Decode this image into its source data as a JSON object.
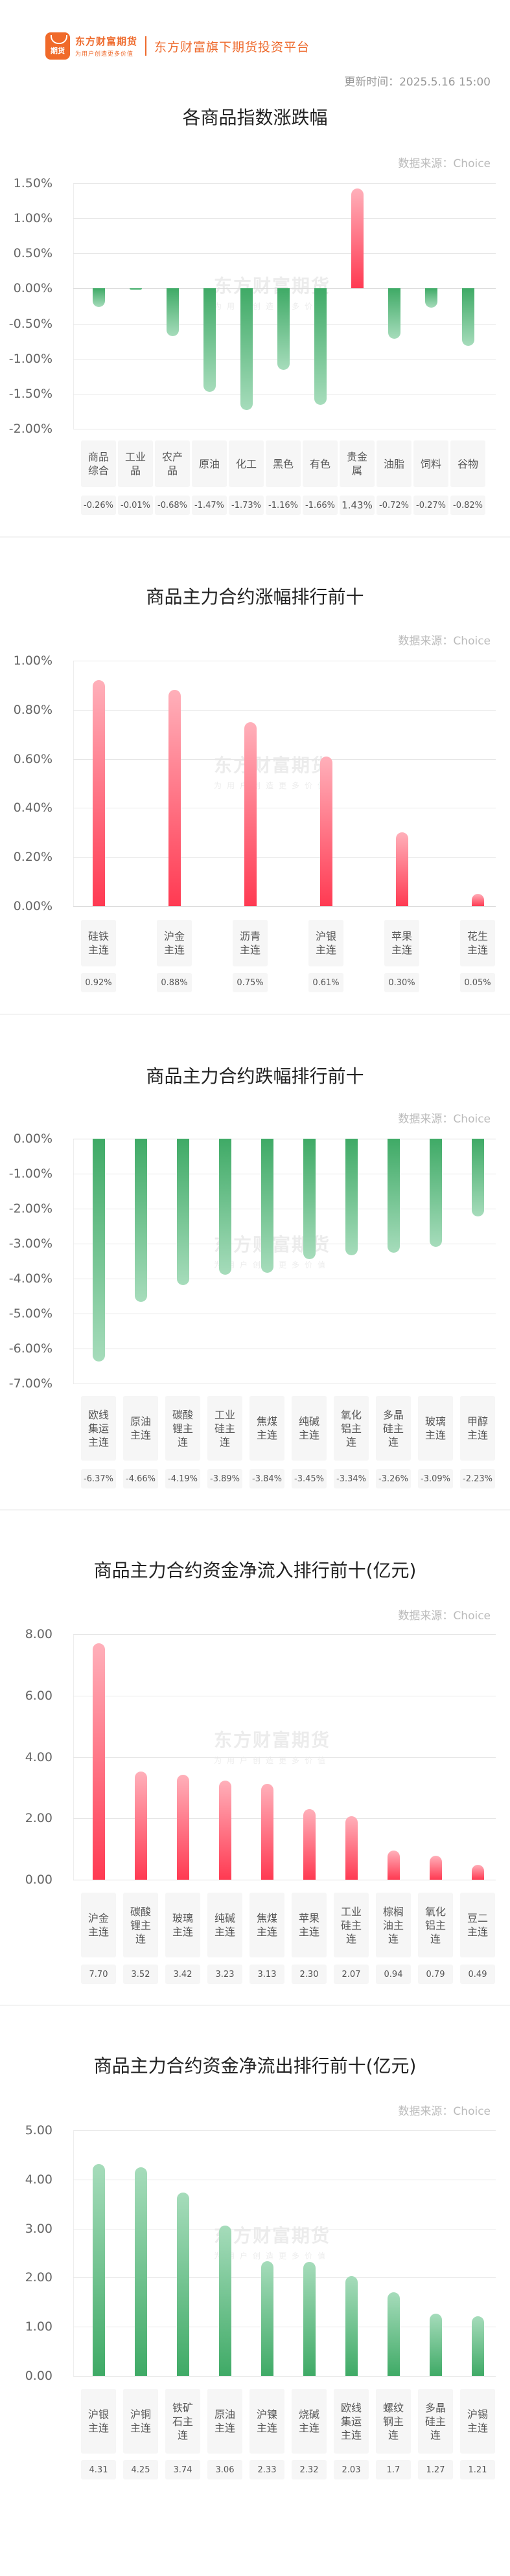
{
  "header": {
    "logo_badge": "期货",
    "logo_main": "东方财富期货",
    "logo_sub": "为用户创造更多价值",
    "slogan": "东方财富旗下期货投资平台",
    "update_time": "更新时间：2025.5.16 15:00"
  },
  "watermark": {
    "main": "东方财富期货",
    "sub": "为用户创造更多价值"
  },
  "colors": {
    "up": "#ff3a52",
    "down": "#3faa66",
    "brand": "#ee6a2c"
  },
  "chart_data": [
    {
      "type": "bar",
      "title": "各商品指数涨跌幅",
      "source": "数据来源：Choice",
      "categories": [
        "商品综合",
        "工业品",
        "农产品",
        "原油",
        "化工",
        "黑色",
        "有色",
        "贵金属",
        "油脂",
        "饲料",
        "谷物"
      ],
      "category_labels": [
        "商品\n综合",
        "工业\n品",
        "农产\n品",
        "原油",
        "化工",
        "黑色",
        "有色",
        "贵金\n属",
        "油脂",
        "饲料",
        "谷物"
      ],
      "values": [
        -0.26,
        -0.01,
        -0.68,
        -1.47,
        -1.73,
        -1.16,
        -1.66,
        1.43,
        -0.72,
        -0.27,
        -0.82
      ],
      "value_labels": [
        "-0.26%",
        "-0.01%",
        "-0.68%",
        "-1.47%",
        "-1.73%",
        "-1.16%",
        "-1.66%",
        "1.43%",
        "-0.72%",
        "-0.27%",
        "-0.82%"
      ],
      "yticks": [
        "1.50%",
        "1.00%",
        "0.50%",
        "0.00%",
        "-0.50%",
        "-1.00%",
        "-1.50%",
        "-2.00%"
      ],
      "ylim": [
        -2.0,
        1.5
      ],
      "grid": true
    },
    {
      "type": "bar",
      "title": "商品主力合约涨幅排行前十",
      "source": "数据来源：Choice",
      "categories": [
        "硅铁主连",
        "沪金主连",
        "沥青主连",
        "沪银主连",
        "苹果主连",
        "花生主连"
      ],
      "category_labels": [
        "硅铁\n主连",
        "沪金\n主连",
        "沥青\n主连",
        "沪银\n主连",
        "苹果\n主连",
        "花生\n主连"
      ],
      "values": [
        0.92,
        0.88,
        0.75,
        0.61,
        0.3,
        0.05
      ],
      "value_labels": [
        "0.92%",
        "0.88%",
        "0.75%",
        "0.61%",
        "0.30%",
        "0.05%"
      ],
      "yticks": [
        "1.00%",
        "0.80%",
        "0.60%",
        "0.40%",
        "0.20%",
        "0.00%"
      ],
      "ylim": [
        0,
        1.0
      ],
      "grid": true
    },
    {
      "type": "bar",
      "title": "商品主力合约跌幅排行前十",
      "source": "数据来源：Choice",
      "categories": [
        "欧线集运主连",
        "原油主连",
        "碳酸锂主连",
        "工业硅主连",
        "焦煤主连",
        "纯碱主连",
        "氧化铝主连",
        "多晶硅主连",
        "玻璃主连",
        "甲醇主连"
      ],
      "category_labels": [
        "欧线\n集运\n主连",
        "原油\n主连",
        "碳酸\n锂主\n连",
        "工业\n硅主\n连",
        "焦煤\n主连",
        "纯碱\n主连",
        "氧化\n铝主\n连",
        "多晶\n硅主\n连",
        "玻璃\n主连",
        "甲醇\n主连"
      ],
      "values": [
        -6.37,
        -4.66,
        -4.19,
        -3.89,
        -3.84,
        -3.45,
        -3.34,
        -3.26,
        -3.09,
        -2.23
      ],
      "value_labels": [
        "-6.37%",
        "-4.66%",
        "-4.19%",
        "-3.89%",
        "-3.84%",
        "-3.45%",
        "-3.34%",
        "-3.26%",
        "-3.09%",
        "-2.23%"
      ],
      "yticks": [
        "0.00%",
        "-1.00%",
        "-2.00%",
        "-3.00%",
        "-4.00%",
        "-5.00%",
        "-6.00%",
        "-7.00%"
      ],
      "ylim": [
        -7.0,
        0
      ],
      "grid": true
    },
    {
      "type": "bar",
      "title": "商品主力合约资金净流入排行前十(亿元)",
      "source": "数据来源：Choice",
      "categories": [
        "沪金主连",
        "碳酸锂主连",
        "玻璃主连",
        "纯碱主连",
        "焦煤主连",
        "苹果主连",
        "工业硅主连",
        "棕榈油主连",
        "氧化铝主连",
        "豆二主连"
      ],
      "category_labels": [
        "沪金\n主连",
        "碳酸\n锂主\n连",
        "玻璃\n主连",
        "纯碱\n主连",
        "焦煤\n主连",
        "苹果\n主连",
        "工业\n硅主\n连",
        "棕榈\n油主\n连",
        "氧化\n铝主\n连",
        "豆二\n主连"
      ],
      "values": [
        7.7,
        3.52,
        3.42,
        3.23,
        3.13,
        2.3,
        2.07,
        0.94,
        0.79,
        0.49
      ],
      "value_labels": [
        "7.70",
        "3.52",
        "3.42",
        "3.23",
        "3.13",
        "2.30",
        "2.07",
        "0.94",
        "0.79",
        "0.49"
      ],
      "yticks": [
        "8.00",
        "6.00",
        "4.00",
        "2.00",
        "0.00"
      ],
      "ylim": [
        0,
        8.0
      ],
      "grid": true
    },
    {
      "type": "bar",
      "title": "商品主力合约资金净流出排行前十(亿元)",
      "source": "数据来源：Choice",
      "categories": [
        "沪银主连",
        "沪铜主连",
        "铁矿石主连",
        "原油主连",
        "沪镍主连",
        "烧碱主连",
        "欧线集运主连",
        "螺纹钢主连",
        "多晶硅主连",
        "沪锡主连"
      ],
      "category_labels": [
        "沪银\n主连",
        "沪铜\n主连",
        "铁矿\n石主\n连",
        "原油\n主连",
        "沪镍\n主连",
        "烧碱\n主连",
        "欧线\n集运\n主连",
        "螺纹\n钢主\n连",
        "多晶\n硅主\n连",
        "沪锡\n主连"
      ],
      "values": [
        4.31,
        4.25,
        3.74,
        3.06,
        2.33,
        2.32,
        2.03,
        1.7,
        1.27,
        1.21
      ],
      "value_labels": [
        "4.31",
        "4.25",
        "3.74",
        "3.06",
        "2.33",
        "2.32",
        "2.03",
        "1.7",
        "1.27",
        "1.21"
      ],
      "yticks": [
        "5.00",
        "4.00",
        "3.00",
        "2.00",
        "1.00",
        "0.00"
      ],
      "ylim": [
        0,
        5.0
      ],
      "grid": true
    }
  ]
}
